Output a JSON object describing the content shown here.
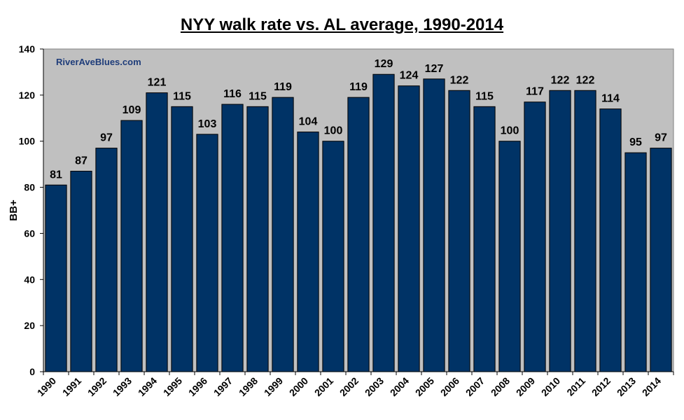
{
  "chart_data": {
    "type": "bar",
    "title": "NYY walk rate vs. AL average, 1990-2014",
    "watermark": "RiverAveBlues.com",
    "xlabel": "",
    "ylabel": "BB+",
    "ylim": [
      0,
      140
    ],
    "yticks": [
      0,
      20,
      40,
      60,
      80,
      100,
      120,
      140
    ],
    "grid": false,
    "legend": "none",
    "categories": [
      "1990",
      "1991",
      "1992",
      "1993",
      "1994",
      "1995",
      "1996",
      "1997",
      "1998",
      "1999",
      "2000",
      "2001",
      "2002",
      "2003",
      "2004",
      "2005",
      "2006",
      "2007",
      "2008",
      "2009",
      "2010",
      "2011",
      "2012",
      "2013",
      "2014"
    ],
    "values": [
      81,
      87,
      97,
      109,
      121,
      115,
      103,
      116,
      115,
      119,
      104,
      100,
      119,
      129,
      124,
      127,
      122,
      115,
      100,
      117,
      122,
      122,
      114,
      95,
      97
    ],
    "colors": {
      "bar": "#003366",
      "plot_background": "#c0c0c0",
      "watermark": "#1f3d7a"
    }
  }
}
